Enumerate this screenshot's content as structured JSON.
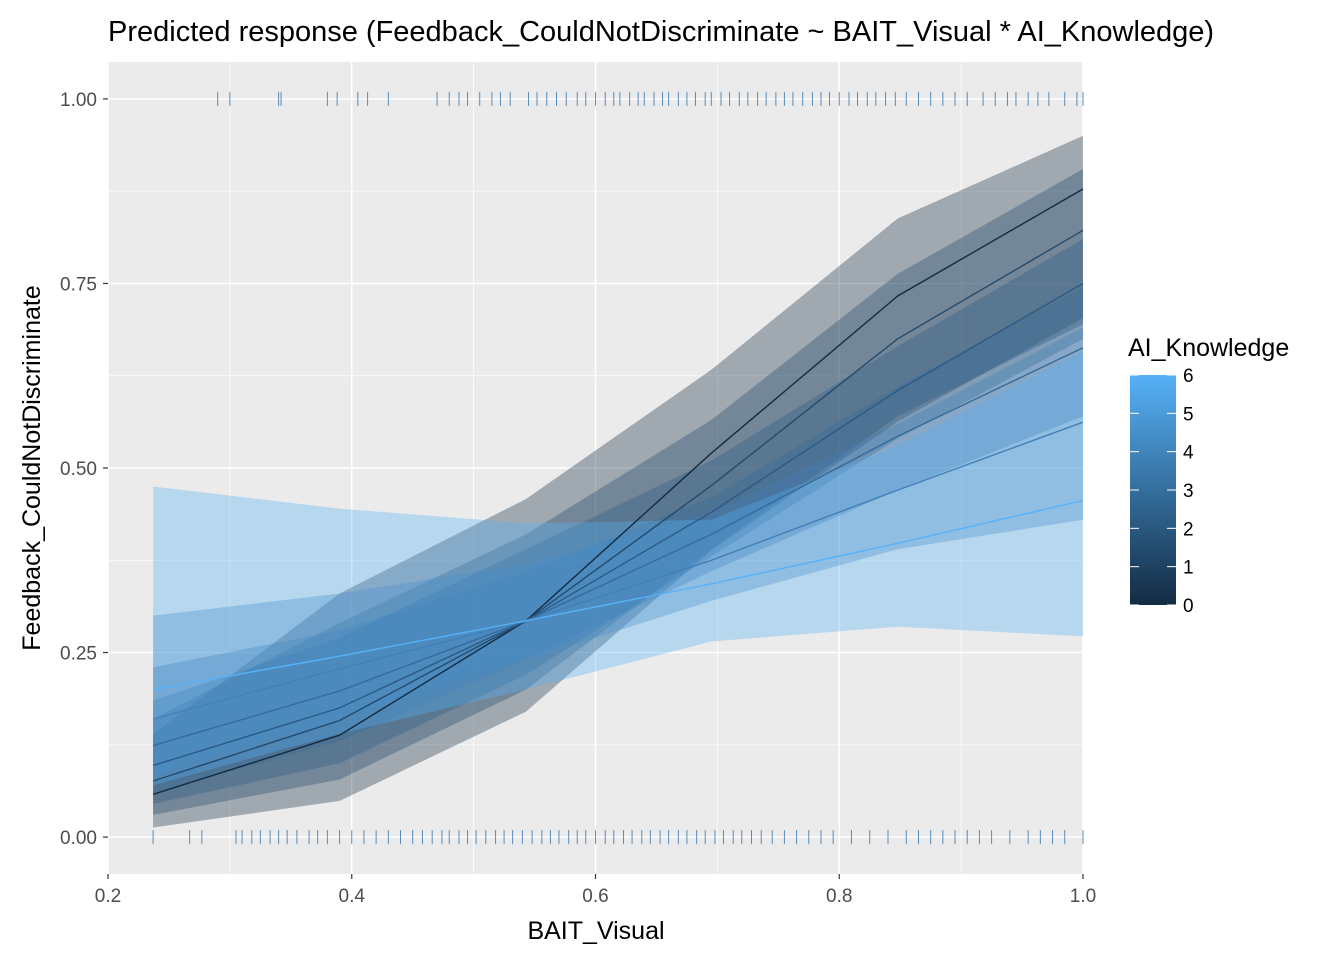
{
  "chart_data": {
    "type": "line",
    "title": "Predicted response (Feedback_CouldNotDiscriminate ~ BAIT_Visual * AI_Knowledge)",
    "xlabel": "BAIT_Visual",
    "ylabel": "Feedback_CouldNotDiscriminate",
    "xlim": [
      0.2,
      1.0
    ],
    "ylim": [
      -0.05,
      1.05
    ],
    "x_ticks": [
      0.2,
      0.4,
      0.6,
      0.8,
      1.0
    ],
    "x_tick_labels": [
      "0.2",
      "0.4",
      "0.6",
      "0.8",
      "1.0"
    ],
    "y_ticks": [
      0.0,
      0.25,
      0.5,
      0.75,
      1.0
    ],
    "y_tick_labels": [
      "0.00",
      "0.25",
      "0.50",
      "0.75",
      "1.00"
    ],
    "grid": true,
    "legend": {
      "title": "AI_Knowledge",
      "placement": "right",
      "type": "colorbar",
      "range": [
        0,
        6
      ],
      "labels": [
        "0",
        "1",
        "2",
        "3",
        "4",
        "5",
        "6"
      ],
      "color_low": "#132B43",
      "color_high": "#56B1F7"
    },
    "x": [
      0.237,
      0.39,
      0.543,
      0.695,
      0.848,
      1.0
    ],
    "series": [
      {
        "ai_knowledge": 0,
        "color": "#132B43",
        "values": [
          0.058,
          0.138,
          0.293,
          0.52,
          0.733,
          0.878
        ],
        "lower": [
          0.013,
          0.049,
          0.17,
          0.388,
          0.563,
          0.703
        ],
        "upper": [
          0.14,
          0.33,
          0.458,
          0.633,
          0.838,
          0.95
        ]
      },
      {
        "ai_knowledge": 2,
        "color": "#234A6D",
        "values": [
          0.076,
          0.158,
          0.293,
          0.476,
          0.675,
          0.822
        ],
        "lower": [
          0.03,
          0.078,
          0.2,
          0.39,
          0.57,
          0.695
        ],
        "upper": [
          0.16,
          0.29,
          0.41,
          0.565,
          0.763,
          0.905
        ]
      },
      {
        "ai_knowledge": 3,
        "color": "#2C5A84",
        "values": [
          0.097,
          0.175,
          0.293,
          0.44,
          0.605,
          0.75
        ],
        "lower": [
          0.045,
          0.1,
          0.22,
          0.38,
          0.54,
          0.675
        ],
        "upper": [
          0.185,
          0.27,
          0.39,
          0.51,
          0.665,
          0.81
        ]
      },
      {
        "ai_knowledge": 4,
        "color": "#356B9C",
        "values": [
          0.124,
          0.198,
          0.293,
          0.41,
          0.543,
          0.663
        ],
        "lower": [
          0.06,
          0.13,
          0.24,
          0.36,
          0.47,
          0.57
        ],
        "upper": [
          0.23,
          0.28,
          0.36,
          0.46,
          0.61,
          0.745
        ]
      },
      {
        "ai_knowledge": 5,
        "color": "#427FB8",
        "values": [
          0.16,
          0.228,
          0.293,
          0.375,
          0.47,
          0.562
        ],
        "lower": [
          0.085,
          0.16,
          0.24,
          0.32,
          0.39,
          0.43
        ],
        "upper": [
          0.3,
          0.33,
          0.37,
          0.44,
          0.56,
          0.69
        ]
      },
      {
        "ai_knowledge": 6,
        "color": "#56B1F7",
        "values": [
          0.2,
          0.245,
          0.293,
          0.343,
          0.398,
          0.456
        ],
        "lower": [
          0.07,
          0.14,
          0.2,
          0.265,
          0.285,
          0.272
        ],
        "upper": [
          0.475,
          0.445,
          0.425,
          0.43,
          0.53,
          0.658
        ]
      }
    ],
    "rug_top_y": 1.0,
    "rug_top_x": [
      0.29,
      0.3,
      0.34,
      0.342,
      0.38,
      0.388,
      0.405,
      0.413,
      0.43,
      0.47,
      0.48,
      0.488,
      0.495,
      0.505,
      0.515,
      0.522,
      0.53,
      0.545,
      0.552,
      0.56,
      0.568,
      0.576,
      0.585,
      0.592,
      0.6,
      0.608,
      0.615,
      0.62,
      0.628,
      0.635,
      0.64,
      0.648,
      0.655,
      0.66,
      0.668,
      0.675,
      0.682,
      0.69,
      0.695,
      0.703,
      0.71,
      0.718,
      0.725,
      0.733,
      0.74,
      0.748,
      0.755,
      0.762,
      0.77,
      0.778,
      0.785,
      0.792,
      0.8,
      0.808,
      0.815,
      0.823,
      0.83,
      0.838,
      0.846,
      0.855,
      0.865,
      0.875,
      0.885,
      0.895,
      0.905,
      0.918,
      0.928,
      0.938,
      0.945,
      0.955,
      0.963,
      0.972,
      0.985,
      0.995,
      1.0
    ],
    "rug_bottom_y": 0.0,
    "rug_bottom_x": [
      0.237,
      0.267,
      0.277,
      0.305,
      0.31,
      0.318,
      0.325,
      0.333,
      0.34,
      0.347,
      0.355,
      0.365,
      0.372,
      0.38,
      0.39,
      0.4,
      0.41,
      0.42,
      0.43,
      0.44,
      0.45,
      0.458,
      0.466,
      0.474,
      0.48,
      0.488,
      0.495,
      0.502,
      0.51,
      0.518,
      0.525,
      0.532,
      0.54,
      0.548,
      0.556,
      0.563,
      0.57,
      0.578,
      0.585,
      0.592,
      0.6,
      0.608,
      0.615,
      0.623,
      0.63,
      0.638,
      0.645,
      0.653,
      0.66,
      0.668,
      0.675,
      0.683,
      0.69,
      0.698,
      0.705,
      0.713,
      0.72,
      0.728,
      0.736,
      0.745,
      0.755,
      0.765,
      0.775,
      0.785,
      0.795,
      0.81,
      0.825,
      0.84,
      0.855,
      0.865,
      0.875,
      0.885,
      0.895,
      0.905,
      0.915,
      0.925,
      0.94,
      0.955,
      0.965,
      0.975,
      0.985,
      1.0
    ]
  }
}
